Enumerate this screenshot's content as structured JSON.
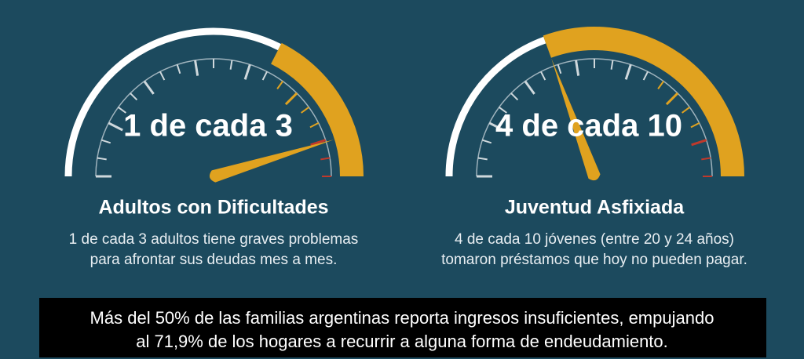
{
  "gauges": [
    {
      "headline": "1 de cada 3",
      "title": "Adultos con Dificultades",
      "description": [
        "1 de cada 3 adultos tiene graves problemas",
        "para afrontar sus deudas mes a mes."
      ]
    },
    {
      "headline": "4 de cada 10",
      "title": "Juventud Asfixiada",
      "description": [
        "4 de cada 10 jóvenes (entre 20 y 24 años)",
        "tomaron préstamos que hoy no pueden pagar."
      ]
    }
  ],
  "caption": [
    "Más del 50% de las familias argentinas reporta ingresos insuficientes, empujando",
    "al 71,9% de los hogares a recurrir a alguna forma de endeudamiento."
  ]
}
